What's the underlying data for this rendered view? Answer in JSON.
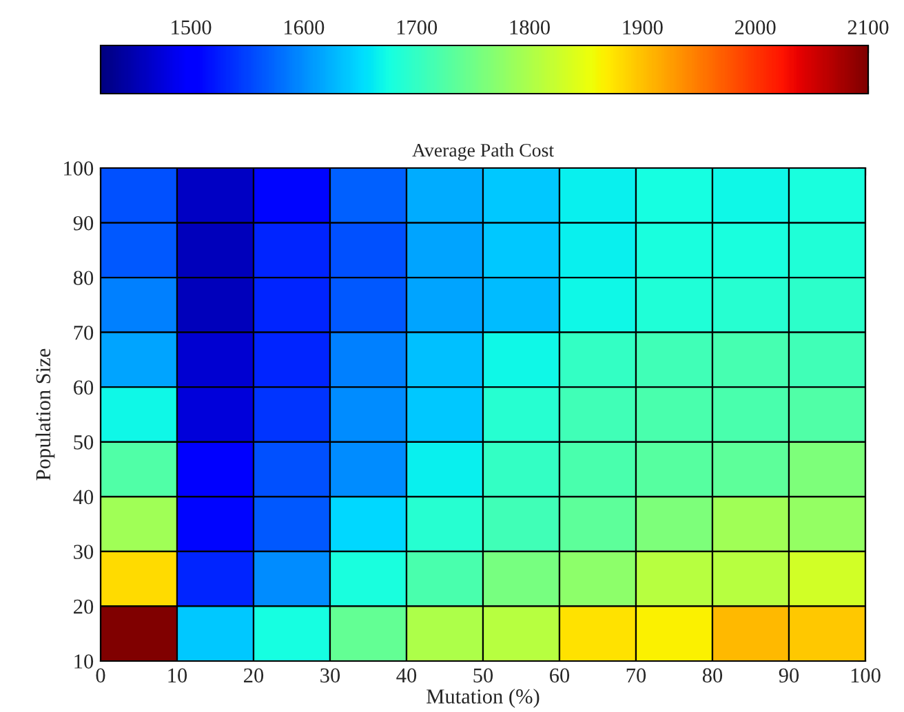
{
  "chart_data": {
    "type": "heatmap",
    "title": "Average Path Cost",
    "xlabel": "Mutation (%)",
    "ylabel": "Population Size",
    "xlim": [
      0,
      100
    ],
    "xticks": [
      0,
      10,
      20,
      30,
      40,
      50,
      60,
      70,
      80,
      90,
      100
    ],
    "ylim": [
      10,
      100
    ],
    "yticks": [
      10,
      20,
      30,
      40,
      50,
      60,
      70,
      80,
      90,
      100
    ],
    "clim": [
      1420,
      2100
    ],
    "cticks": [
      1500,
      1600,
      1700,
      1800,
      1900,
      2000,
      2100
    ],
    "cells": [
      [
        1560,
        1460,
        1510,
        1570,
        1620,
        1640,
        1665,
        1675,
        1672,
        1680
      ],
      [
        1565,
        1455,
        1530,
        1560,
        1615,
        1640,
        1665,
        1680,
        1680,
        1685
      ],
      [
        1590,
        1455,
        1530,
        1565,
        1615,
        1630,
        1672,
        1685,
        1690,
        1695
      ],
      [
        1615,
        1470,
        1530,
        1590,
        1635,
        1672,
        1700,
        1710,
        1715,
        1710
      ],
      [
        1670,
        1475,
        1540,
        1600,
        1640,
        1690,
        1710,
        1720,
        1720,
        1725
      ],
      [
        1725,
        1495,
        1560,
        1600,
        1665,
        1700,
        1720,
        1730,
        1735,
        1760
      ],
      [
        1790,
        1510,
        1565,
        1650,
        1690,
        1710,
        1735,
        1760,
        1790,
        1780
      ],
      [
        1880,
        1530,
        1600,
        1680,
        1720,
        1755,
        1775,
        1810,
        1810,
        1830
      ],
      [
        2100,
        1640,
        1675,
        1740,
        1800,
        1810,
        1875,
        1865,
        1905,
        1895
      ]
    ]
  }
}
